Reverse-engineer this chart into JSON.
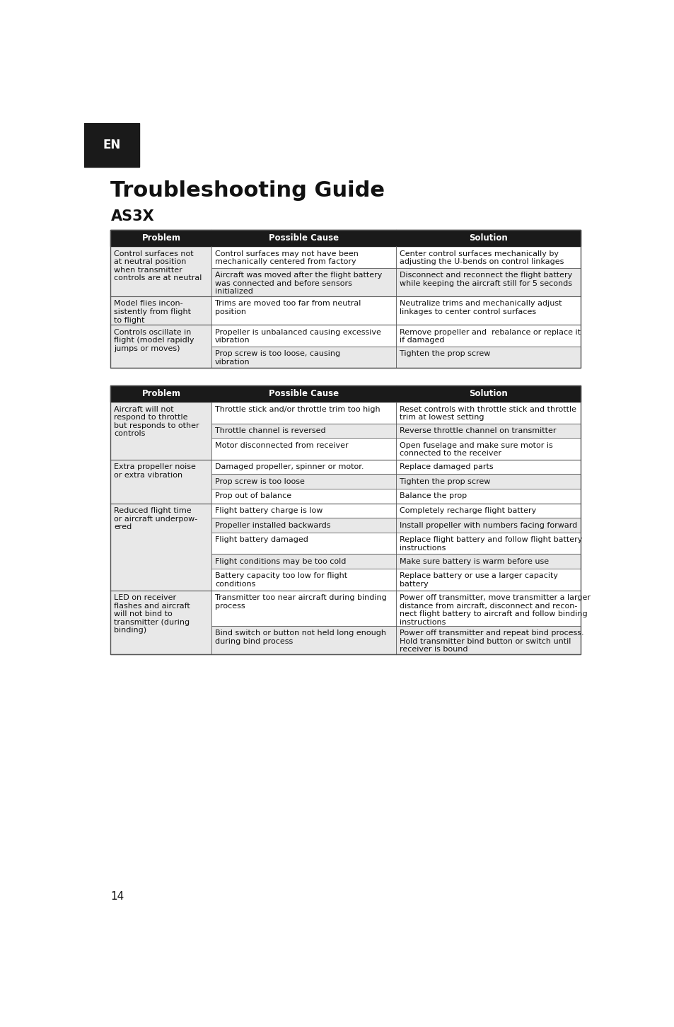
{
  "title": "Troubleshooting Guide",
  "subtitle": "AS3X",
  "header_bg": "#1a1a1a",
  "header_text_color": "#ffffff",
  "row_bg_light": "#e8e8e8",
  "row_bg_white": "#ffffff",
  "border_color": "#555555",
  "text_color": "#111111",
  "page_bg": "#ffffff",
  "en_bg": "#1a1a1a",
  "en_text": "EN",
  "en_text_color": "#ffffff",
  "page_number": "14",
  "table1": {
    "headers": [
      "Problem",
      "Possible Cause",
      "Solution"
    ],
    "rows": [
      {
        "problem": "Control surfaces not\nat neutral position\nwhen transmitter\ncontrols are at neutral",
        "cause_solution_pairs": [
          [
            "Control surfaces may not have been\nmechanically centered from factory",
            "Center control surfaces mechanically by\nadjusting the U-bends on control linkages"
          ],
          [
            "Aircraft was moved after the flight battery\nwas connected and before sensors\ninitialized",
            "Disconnect and reconnect the flight battery\nwhile keeping the aircraft still for 5 seconds"
          ]
        ]
      },
      {
        "problem": "Model flies incon-\nsistently from flight\nto flight",
        "cause_solution_pairs": [
          [
            "Trims are moved too far from neutral\nposition",
            "Neutralize trims and mechanically adjust\nlinkages to center control surfaces"
          ]
        ]
      },
      {
        "problem": "Controls oscillate in\nflight (model rapidly\njumps or moves)",
        "cause_solution_pairs": [
          [
            "Propeller is unbalanced causing excessive\nvibration",
            "Remove propeller and  rebalance or replace it\nif damaged"
          ],
          [
            "Prop screw is too loose, causing\nvibration",
            "Tighten the prop screw"
          ]
        ]
      }
    ]
  },
  "table2": {
    "headers": [
      "Problem",
      "Possible Cause",
      "Solution"
    ],
    "rows": [
      {
        "problem": "Aircraft will not\nrespond to throttle\nbut responds to other\ncontrols",
        "cause_solution_pairs": [
          [
            "Throttle stick and/or throttle trim too high",
            "Reset controls with throttle stick and throttle\ntrim at lowest setting"
          ],
          [
            "Throttle channel is reversed",
            "Reverse throttle channel on transmitter"
          ],
          [
            "Motor disconnected from receiver",
            "Open fuselage and make sure motor is\nconnected to the receiver"
          ]
        ]
      },
      {
        "problem": "Extra propeller noise\nor extra vibration",
        "cause_solution_pairs": [
          [
            "Damaged propeller, spinner or motor.",
            "Replace damaged parts"
          ],
          [
            "Prop screw is too loose",
            "Tighten the prop screw"
          ],
          [
            "Prop out of balance",
            "Balance the prop"
          ]
        ]
      },
      {
        "problem": "Reduced flight time\nor aircraft underpow-\nered",
        "cause_solution_pairs": [
          [
            "Flight battery charge is low",
            "Completely recharge flight battery"
          ],
          [
            "Propeller installed backwards",
            "Install propeller with numbers facing forward"
          ],
          [
            "Flight battery damaged",
            "Replace flight battery and follow flight battery\ninstructions"
          ],
          [
            "Flight conditions may be too cold",
            "Make sure battery is warm before use"
          ],
          [
            "Battery capacity too low for flight\nconditions",
            "Replace battery or use a larger capacity\nbattery"
          ]
        ]
      },
      {
        "problem": "LED on receiver\nflashes and aircraft\nwill not bind to\ntransmitter (during\nbinding)",
        "cause_solution_pairs": [
          [
            "Transmitter too near aircraft during binding\nprocess",
            "Power off transmitter, move transmitter a larger\ndistance from aircraft, disconnect and recon-\nnect flight battery to aircraft and follow binding\ninstructions"
          ],
          [
            "Bind switch or button not held long enough\nduring bind process",
            "Power off transmitter and repeat bind process.\nHold transmitter bind button or switch until\nreceiver is bound"
          ]
        ]
      }
    ]
  }
}
